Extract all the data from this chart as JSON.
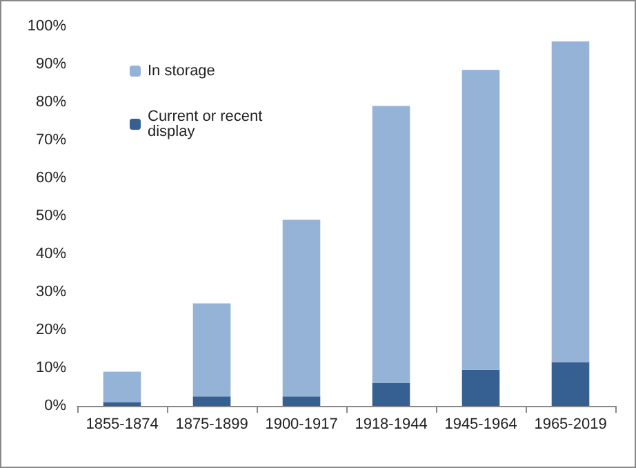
{
  "chart_data": {
    "type": "bar",
    "stacked": true,
    "categories": [
      "1855-1874",
      "1875-1899",
      "1900-1917",
      "1918-1944",
      "1945-1964",
      "1965-2019"
    ],
    "series": [
      {
        "name": "Current or recent display",
        "color": "#366092",
        "values": [
          1,
          2.5,
          2.5,
          6,
          9.5,
          11.5
        ]
      },
      {
        "name": "In storage",
        "color": "#95b3d7",
        "values": [
          8,
          24.5,
          46.5,
          73,
          79,
          84.5
        ]
      }
    ],
    "ylim": [
      0,
      100
    ],
    "yticks": [
      {
        "value": 0,
        "label": "0%"
      },
      {
        "value": 10,
        "label": "10%"
      },
      {
        "value": 20,
        "label": "20%"
      },
      {
        "value": 30,
        "label": "30%"
      },
      {
        "value": 40,
        "label": "40%"
      },
      {
        "value": 50,
        "label": "50%"
      },
      {
        "value": 60,
        "label": "60%"
      },
      {
        "value": 70,
        "label": "70%"
      },
      {
        "value": 80,
        "label": "80%"
      },
      {
        "value": 90,
        "label": "90%"
      },
      {
        "value": 100,
        "label": "100%"
      }
    ],
    "grid": false,
    "legend": "top left"
  }
}
